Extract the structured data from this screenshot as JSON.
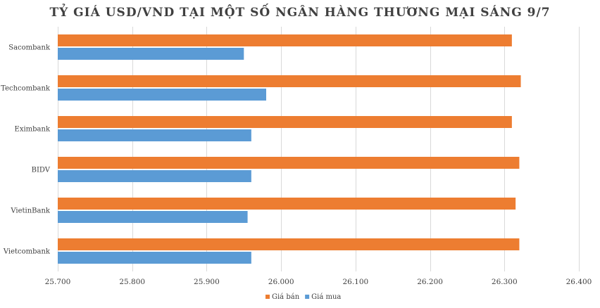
{
  "chart_data": {
    "type": "bar",
    "orientation": "horizontal",
    "title": "TỶ GIÁ USD/VND TẠI MỘT SỐ NGÂN HÀNG THƯƠNG MẠI SÁNG 9/7",
    "categories": [
      "Sacombank",
      "Techcombank",
      "Eximbank",
      "BIDV",
      "VietinBank",
      "Vietcombank"
    ],
    "series": [
      {
        "name": "Giá bán",
        "color": "#ED7D31",
        "values": [
          26310,
          26322,
          26310,
          26320,
          26315,
          26320
        ]
      },
      {
        "name": "Giá mua",
        "color": "#5B9BD5",
        "values": [
          25950,
          25980,
          25960,
          25960,
          25955,
          25960
        ]
      }
    ],
    "xlim": [
      25700,
      26400
    ],
    "x_ticks": [
      25700,
      25800,
      25900,
      26000,
      26100,
      26200,
      26300,
      26400
    ],
    "x_tick_labels": [
      "25.700",
      "25.800",
      "25.900",
      "26.000",
      "26.100",
      "26.200",
      "26.300",
      "26.400"
    ],
    "grid": true,
    "legend": "bottom",
    "xlabel": "",
    "ylabel": ""
  }
}
